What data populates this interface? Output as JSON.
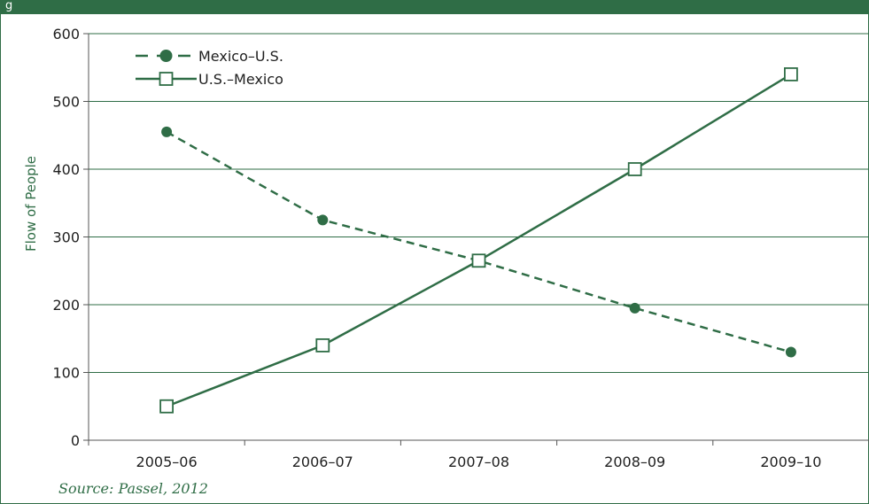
{
  "header": {
    "title_fragment": "g"
  },
  "chart_data": {
    "type": "line",
    "categories": [
      "2005–06",
      "2006–07",
      "2007–08",
      "2008–09",
      "2009–10"
    ],
    "series": [
      {
        "name": "Mexico–U.S.",
        "values": [
          455,
          325,
          265,
          195,
          130
        ],
        "style": "dashed",
        "marker": "filled-circle",
        "color": "#2f6d46"
      },
      {
        "name": "U.S.–Mexico",
        "values": [
          50,
          140,
          265,
          400,
          540
        ],
        "style": "solid",
        "marker": "open-square",
        "color": "#2f6d46"
      }
    ],
    "xlabel": "",
    "ylabel": "Flow of People",
    "ylim": [
      0,
      600
    ],
    "yticks": [
      0,
      100,
      200,
      300,
      400,
      500,
      600
    ],
    "grid": true,
    "legend": "top-left"
  },
  "source_note": "Source: Passel, 2012",
  "colors": {
    "accent": "#2f6d46",
    "grid": "#2f6d46",
    "text": "#1f1f1f"
  }
}
